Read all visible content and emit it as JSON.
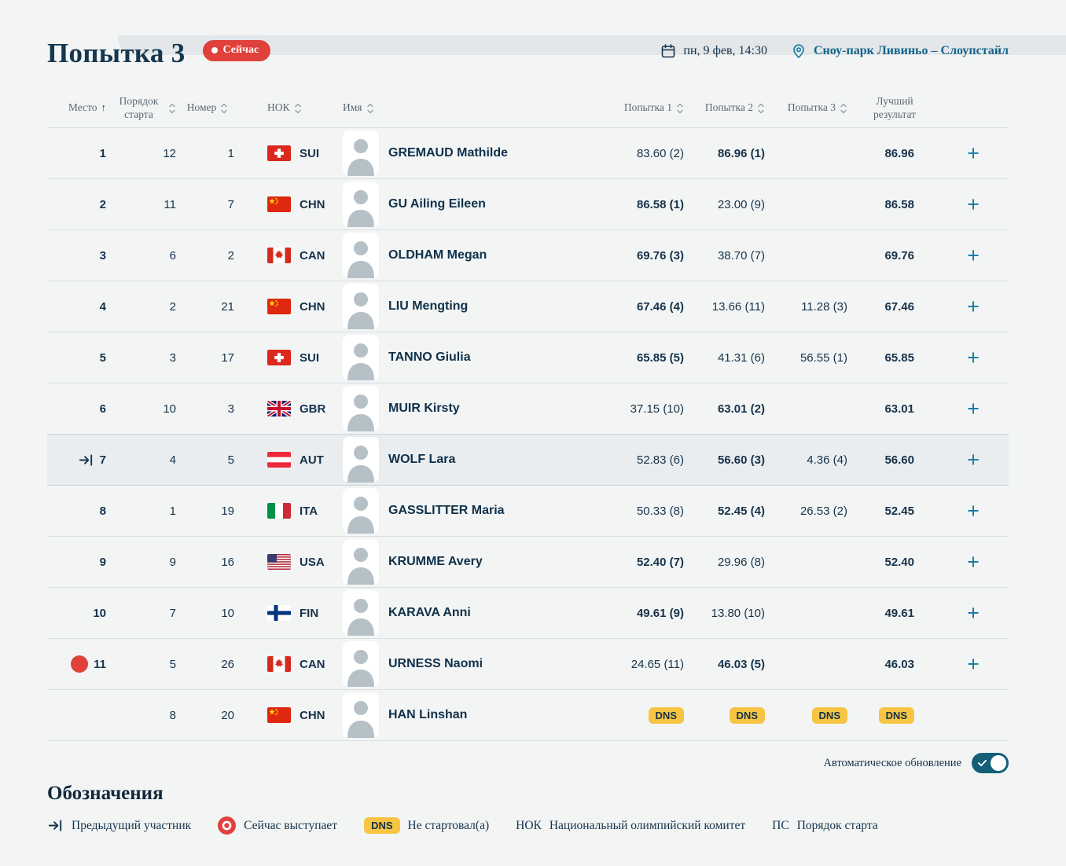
{
  "page": {
    "title": "Попытка 3",
    "live_badge": "Сейчас",
    "datetime": "пн, 9 фев, 14:30",
    "venue": "Сноу-парк Ливиньо – Слоупстайл"
  },
  "table": {
    "headers": [
      {
        "label": "Место",
        "sort": "asc"
      },
      {
        "label": "Порядок старта",
        "sort": "both"
      },
      {
        "label": "Номер",
        "sort": "both"
      },
      {
        "label": "НОК",
        "sort": "both"
      },
      {
        "label": "Имя",
        "sort": "both"
      },
      {
        "label": "Попытка 1",
        "sort": "both"
      },
      {
        "label": "Попытка 2",
        "sort": "both"
      },
      {
        "label": "Попытка 3",
        "sort": "both"
      },
      {
        "label": "Лучший результат",
        "sort": "none"
      }
    ],
    "rows": [
      {
        "place": "1",
        "marker": null,
        "start_order": "12",
        "bib": "1",
        "noc": "SUI",
        "name": "GREMAUD Mathilde",
        "attempts": [
          {
            "v": "83.60 (2)",
            "best": false
          },
          {
            "v": "86.96 (1)",
            "best": true
          },
          {
            "v": "",
            "best": false
          }
        ],
        "best": "86.96",
        "highlighted": false,
        "plus": true
      },
      {
        "place": "2",
        "marker": null,
        "start_order": "11",
        "bib": "7",
        "noc": "CHN",
        "name": "GU Ailing Eileen",
        "attempts": [
          {
            "v": "86.58 (1)",
            "best": true
          },
          {
            "v": "23.00 (9)",
            "best": false
          },
          {
            "v": "",
            "best": false
          }
        ],
        "best": "86.58",
        "highlighted": false,
        "plus": true
      },
      {
        "place": "3",
        "marker": null,
        "start_order": "6",
        "bib": "2",
        "noc": "CAN",
        "name": "OLDHAM Megan",
        "attempts": [
          {
            "v": "69.76 (3)",
            "best": true
          },
          {
            "v": "38.70 (7)",
            "best": false
          },
          {
            "v": "",
            "best": false
          }
        ],
        "best": "69.76",
        "highlighted": false,
        "plus": true
      },
      {
        "place": "4",
        "marker": null,
        "start_order": "2",
        "bib": "21",
        "noc": "CHN",
        "name": "LIU Mengting",
        "attempts": [
          {
            "v": "67.46 (4)",
            "best": true
          },
          {
            "v": "13.66 (11)",
            "best": false
          },
          {
            "v": "11.28 (3)",
            "best": false
          }
        ],
        "best": "67.46",
        "highlighted": false,
        "plus": true
      },
      {
        "place": "5",
        "marker": null,
        "start_order": "3",
        "bib": "17",
        "noc": "SUI",
        "name": "TANNO Giulia",
        "attempts": [
          {
            "v": "65.85 (5)",
            "best": true
          },
          {
            "v": "41.31 (6)",
            "best": false
          },
          {
            "v": "56.55 (1)",
            "best": false
          }
        ],
        "best": "65.85",
        "highlighted": false,
        "plus": true
      },
      {
        "place": "6",
        "marker": null,
        "start_order": "10",
        "bib": "3",
        "noc": "GBR",
        "name": "MUIR Kirsty",
        "attempts": [
          {
            "v": "37.15 (10)",
            "best": false
          },
          {
            "v": "63.01 (2)",
            "best": true
          },
          {
            "v": "",
            "best": false
          }
        ],
        "best": "63.01",
        "highlighted": false,
        "plus": true
      },
      {
        "place": "7",
        "marker": "previous",
        "start_order": "4",
        "bib": "5",
        "noc": "AUT",
        "name": "WOLF Lara",
        "attempts": [
          {
            "v": "52.83 (6)",
            "best": false
          },
          {
            "v": "56.60 (3)",
            "best": true
          },
          {
            "v": "4.36 (4)",
            "best": false
          }
        ],
        "best": "56.60",
        "highlighted": true,
        "plus": true
      },
      {
        "place": "8",
        "marker": null,
        "start_order": "1",
        "bib": "19",
        "noc": "ITA",
        "name": "GASSLITTER Maria",
        "attempts": [
          {
            "v": "50.33 (8)",
            "best": false
          },
          {
            "v": "52.45 (4)",
            "best": true
          },
          {
            "v": "26.53 (2)",
            "best": false
          }
        ],
        "best": "52.45",
        "highlighted": false,
        "plus": true
      },
      {
        "place": "9",
        "marker": null,
        "start_order": "9",
        "bib": "16",
        "noc": "USA",
        "name": "KRUMME Avery",
        "attempts": [
          {
            "v": "52.40 (7)",
            "best": true
          },
          {
            "v": "29.96 (8)",
            "best": false
          },
          {
            "v": "",
            "best": false
          }
        ],
        "best": "52.40",
        "highlighted": false,
        "plus": true
      },
      {
        "place": "10",
        "marker": null,
        "start_order": "7",
        "bib": "10",
        "noc": "FIN",
        "name": "KARAVA Anni",
        "attempts": [
          {
            "v": "49.61 (9)",
            "best": true
          },
          {
            "v": "13.80 (10)",
            "best": false
          },
          {
            "v": "",
            "best": false
          }
        ],
        "best": "49.61",
        "highlighted": false,
        "plus": true
      },
      {
        "place": "11",
        "marker": "current",
        "start_order": "5",
        "bib": "26",
        "noc": "CAN",
        "name": "URNESS Naomi",
        "attempts": [
          {
            "v": "24.65 (11)",
            "best": false
          },
          {
            "v": "46.03 (5)",
            "best": true
          },
          {
            "v": "",
            "best": false
          }
        ],
        "best": "46.03",
        "highlighted": false,
        "plus": true
      },
      {
        "place": "",
        "marker": null,
        "start_order": "8",
        "bib": "20",
        "noc": "CHN",
        "name": "HAN Linshan",
        "attempts": [
          {
            "v": "DNS",
            "best": false,
            "dns": true
          },
          {
            "v": "DNS",
            "best": false,
            "dns": true
          },
          {
            "v": "DNS",
            "best": false,
            "dns": true
          }
        ],
        "best": "DNS",
        "best_dns": true,
        "highlighted": false,
        "plus": false
      }
    ]
  },
  "footer": {
    "auto_update": "Автоматическое обновление",
    "toggle_on": true
  },
  "legend": {
    "title": "Обозначения",
    "items": [
      {
        "icon": "previous-arrow",
        "label": "Предыдущий участник"
      },
      {
        "icon": "current-dot",
        "label": "Сейчас выступает"
      },
      {
        "icon": "dns-badge",
        "badge": "DNS",
        "label": "Не стартовал(а)"
      },
      {
        "abbr": "НОК",
        "label": "Национальный олимпийский комитет"
      },
      {
        "abbr": "ПС",
        "label": "Порядок старта"
      }
    ]
  },
  "badges": {
    "dns": "DNS"
  },
  "colors": {
    "accent_teal": "#1878a2",
    "navy_text": "#16324a",
    "live_red": "#e0413b",
    "dns_yellow": "#f7c444",
    "toggle_teal": "#135f78",
    "highlight_row": "#e9edf0",
    "venue_teal": "#15648b"
  }
}
